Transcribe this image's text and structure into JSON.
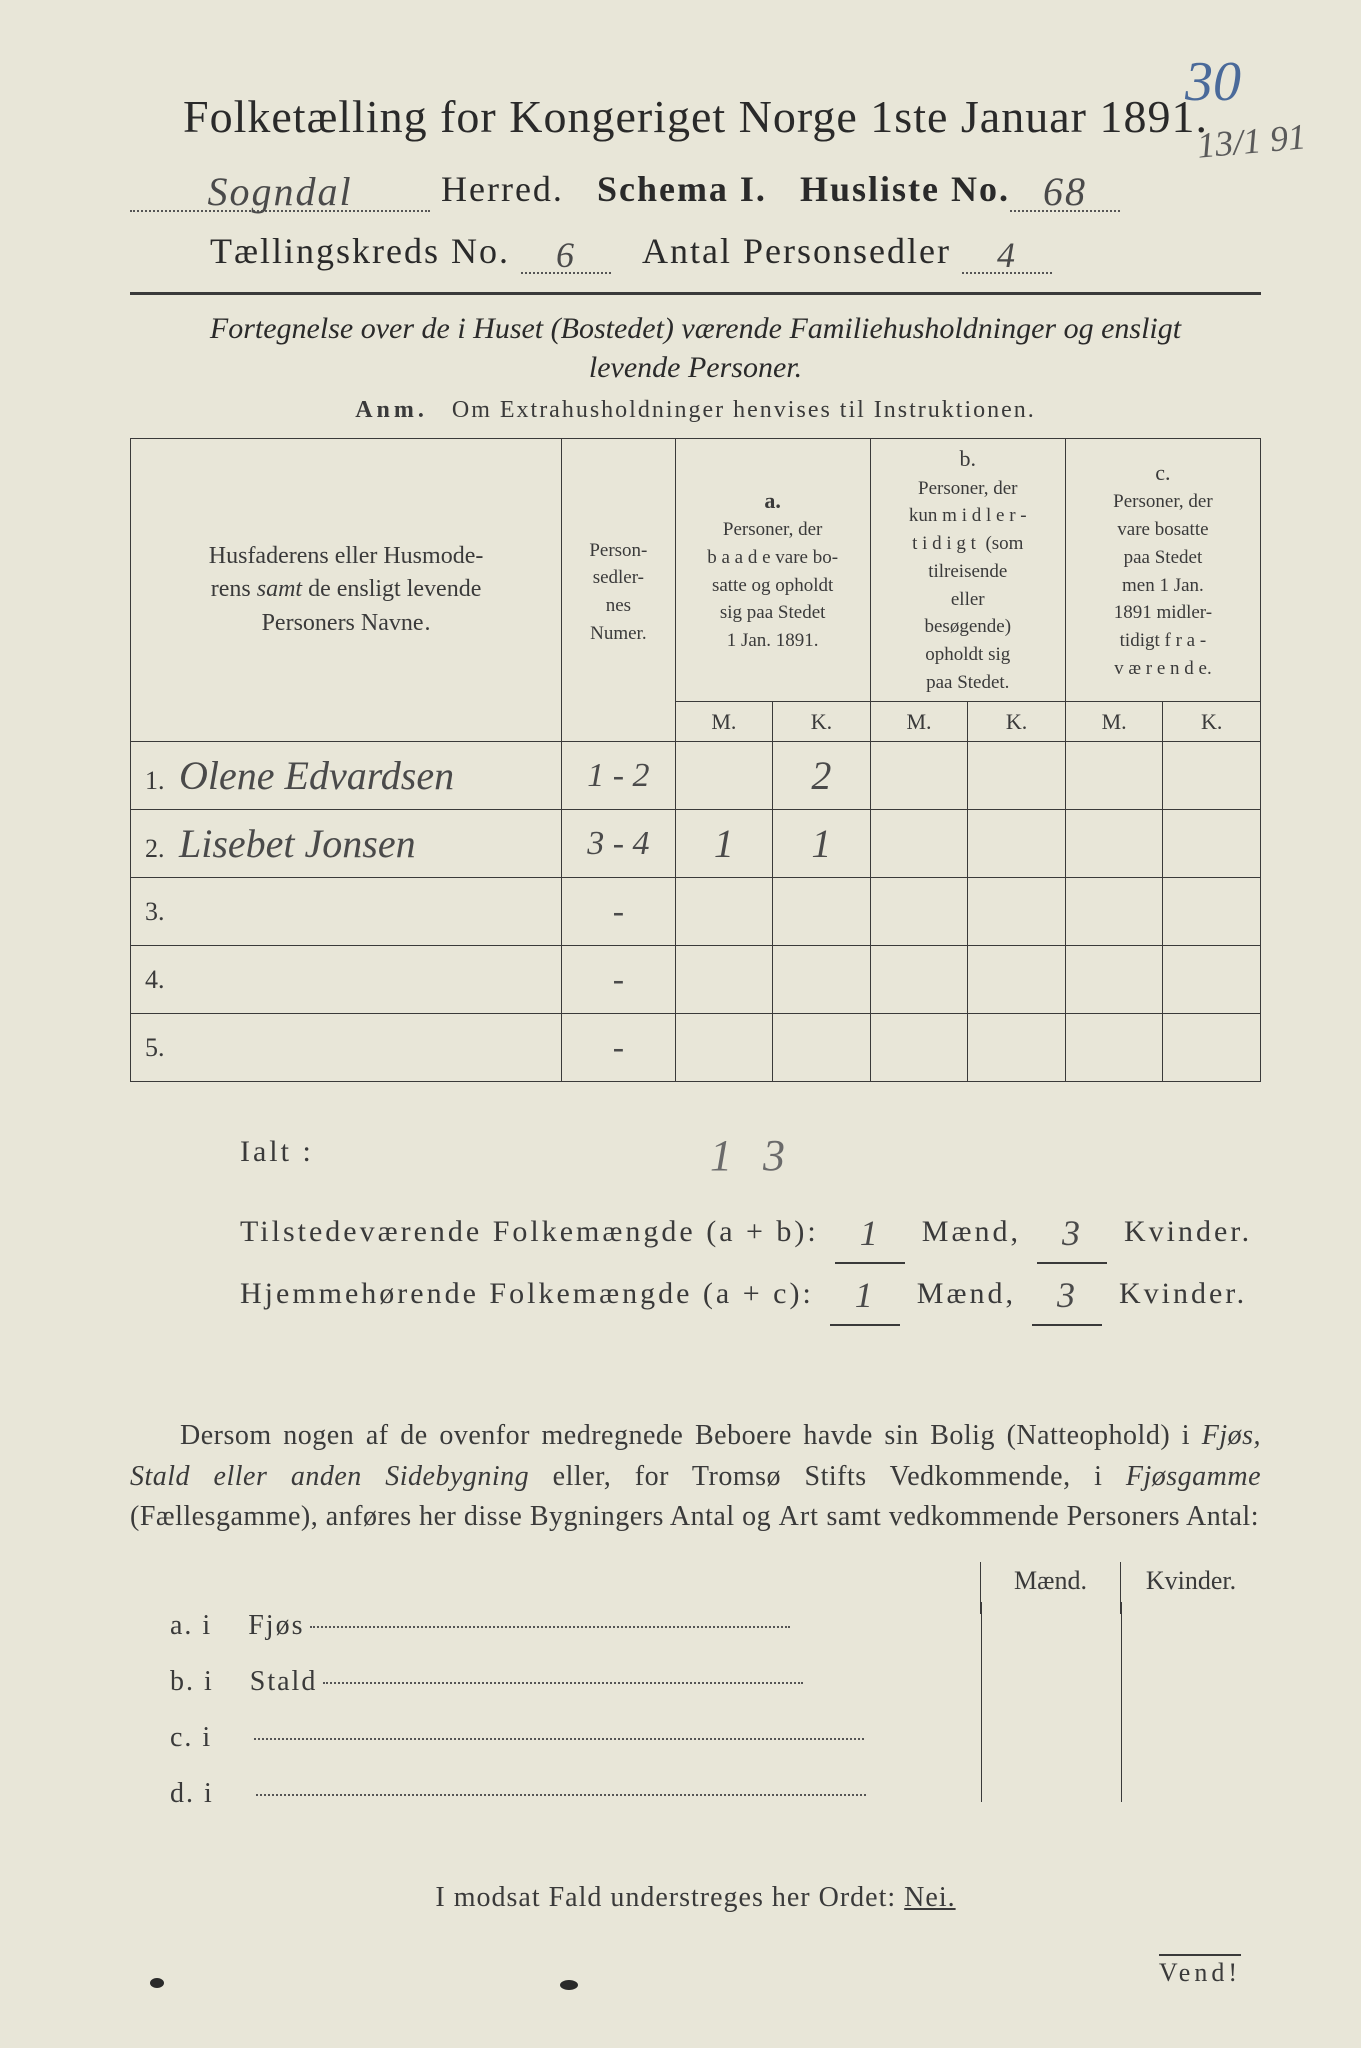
{
  "annotations": {
    "corner_number": "30",
    "side_note": "13/1 91"
  },
  "header": {
    "title": "Folketælling for Kongeriget Norge 1ste Januar 1891.",
    "herred_value": "Sogndal",
    "herred_label": "Herred.",
    "schema_label": "Schema I.",
    "husliste_label": "Husliste No.",
    "husliste_value": "68",
    "kreds_label": "Tællingskreds No.",
    "kreds_value": "6",
    "antal_label": "Antal Personsedler",
    "antal_value": "4"
  },
  "subtitle": {
    "line1": "Fortegnelse over de i Huset (Bostedet) værende Familiehusholdninger og ensligt",
    "line2": "levende Personer.",
    "anm_label": "Anm.",
    "anm_text": "Om Extrahusholdninger henvises til Instruktionen."
  },
  "table": {
    "headers": {
      "name": "Husfaderens eller Husmode­rens samt de ensligt levende Personers Navne.",
      "numer": "Person­sedler­nes Numer.",
      "a_letter": "a.",
      "a_text": "Personer, der baade vare bo­satte og opholdt sig paa Stedet 1 Jan. 1891.",
      "b_letter": "b.",
      "b_text": "Personer, der kun midler­tidigt (som tilreisende eller besøgende) opholdt sig paa Stedet.",
      "c_letter": "c.",
      "c_text": "Personer, der vare bosatte paa Stedet men 1 Jan. 1891 midler­tidigt fra­værende.",
      "m": "M.",
      "k": "K."
    },
    "rows": [
      {
        "n": "1.",
        "name": "Olene Edvardsen",
        "numer": "1 - 2",
        "a_m": "",
        "a_k": "2",
        "b_m": "",
        "b_k": "",
        "c_m": "",
        "c_k": ""
      },
      {
        "n": "2.",
        "name": "Lisebet Jonsen",
        "numer": "3 - 4",
        "a_m": "1",
        "a_k": "1",
        "b_m": "",
        "b_k": "",
        "c_m": "",
        "c_k": ""
      },
      {
        "n": "3.",
        "name": "",
        "numer": "-",
        "a_m": "",
        "a_k": "",
        "b_m": "",
        "b_k": "",
        "c_m": "",
        "c_k": ""
      },
      {
        "n": "4.",
        "name": "",
        "numer": "-",
        "a_m": "",
        "a_k": "",
        "b_m": "",
        "b_k": "",
        "c_m": "",
        "c_k": ""
      },
      {
        "n": "5.",
        "name": "",
        "numer": "-",
        "a_m": "",
        "a_k": "",
        "b_m": "",
        "b_k": "",
        "c_m": "",
        "c_k": ""
      }
    ]
  },
  "totals": {
    "ialt_label": "Ialt :",
    "ialt_hw": "1   3",
    "line1_label": "Tilstedeværende Folkemængde (a + b):",
    "line2_label": "Hjemmehørende Folkemængde (a + c):",
    "maend": "Mænd,",
    "kvinder": "Kvinder.",
    "v1_m": "1",
    "v1_k": "3",
    "v2_m": "1",
    "v2_k": "3"
  },
  "paragraph": {
    "text_pre": "Dersom nogen af de ovenfor medregnede Beboere havde sin Bolig (Natte­ophold) i ",
    "italic1": "Fjøs, Stald eller anden Sidebygning",
    "text_mid1": " eller, for Tromsø Stifts Ved­kommende, i ",
    "italic2": "Fjøsgamme",
    "text_mid2": " (Fællesgamme), anføres her disse Bygningers Antal og ",
    "bold1": "Art",
    "text_post": " samt vedkommende Personers Antal:"
  },
  "mk": {
    "m": "Mænd.",
    "k": "Kvinder."
  },
  "abcd": {
    "rows": [
      {
        "label": "a.  i",
        "text": "Fjøs"
      },
      {
        "label": "b.  i",
        "text": "Stald"
      },
      {
        "label": "c.  i",
        "text": ""
      },
      {
        "label": "d.  i",
        "text": ""
      }
    ]
  },
  "nei": {
    "text_pre": "I modsat Fald understreges her Ordet: ",
    "word": "Nei."
  },
  "vend": "Vend!"
}
